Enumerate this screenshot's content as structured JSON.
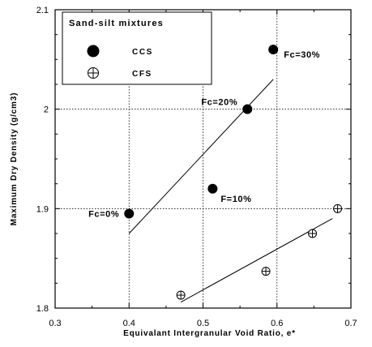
{
  "chart_data": {
    "type": "scatter",
    "xlabel": "Equivalant Intergranular Void Ratio, e*",
    "ylabel": "Maximum Dry Density (g/cm3)",
    "xlim": [
      0.3,
      0.7
    ],
    "ylim": [
      1.8,
      2.1
    ],
    "x_ticks": [
      0.3,
      0.4,
      0.5,
      0.6,
      0.7
    ],
    "y_ticks": [
      1.8,
      1.9,
      2.0,
      2.1
    ],
    "x_tick_labels": [
      "0.3",
      "0.4",
      "0.5",
      "0.6",
      "0.7"
    ],
    "y_tick_labels": [
      "1.8",
      "1.9",
      "2",
      "2.1"
    ],
    "grid": true,
    "legend": {
      "title": "Sand-silt mixtures",
      "placement": "top-left",
      "entries": [
        "CCS",
        "CFS"
      ]
    },
    "series": [
      {
        "name": "CCS",
        "marker": "filled-circle",
        "color": "#000000",
        "points": [
          {
            "x": 0.4,
            "y": 1.895
          },
          {
            "x": 0.513,
            "y": 1.92
          },
          {
            "x": 0.56,
            "y": 2.0
          },
          {
            "x": 0.595,
            "y": 2.06
          }
        ],
        "trendline": {
          "x": [
            0.4,
            0.595
          ],
          "y": [
            1.875,
            2.03
          ]
        }
      },
      {
        "name": "CFS",
        "marker": "crossed-circle",
        "color": "#000000",
        "points": [
          {
            "x": 0.47,
            "y": 1.813
          },
          {
            "x": 0.585,
            "y": 1.837
          },
          {
            "x": 0.648,
            "y": 1.875
          },
          {
            "x": 0.682,
            "y": 1.9
          }
        ],
        "trendline": {
          "x": [
            0.47,
            0.675
          ],
          "y": [
            1.806,
            1.89
          ]
        }
      }
    ],
    "annotations": [
      {
        "text": "Fc=0%",
        "x": 0.4,
        "y": 1.895
      },
      {
        "text": "F=10%",
        "x": 0.513,
        "y": 1.92
      },
      {
        "text": "Fc=20%",
        "x": 0.56,
        "y": 2.0
      },
      {
        "text": "Fc=30%",
        "x": 0.595,
        "y": 2.06
      }
    ]
  }
}
